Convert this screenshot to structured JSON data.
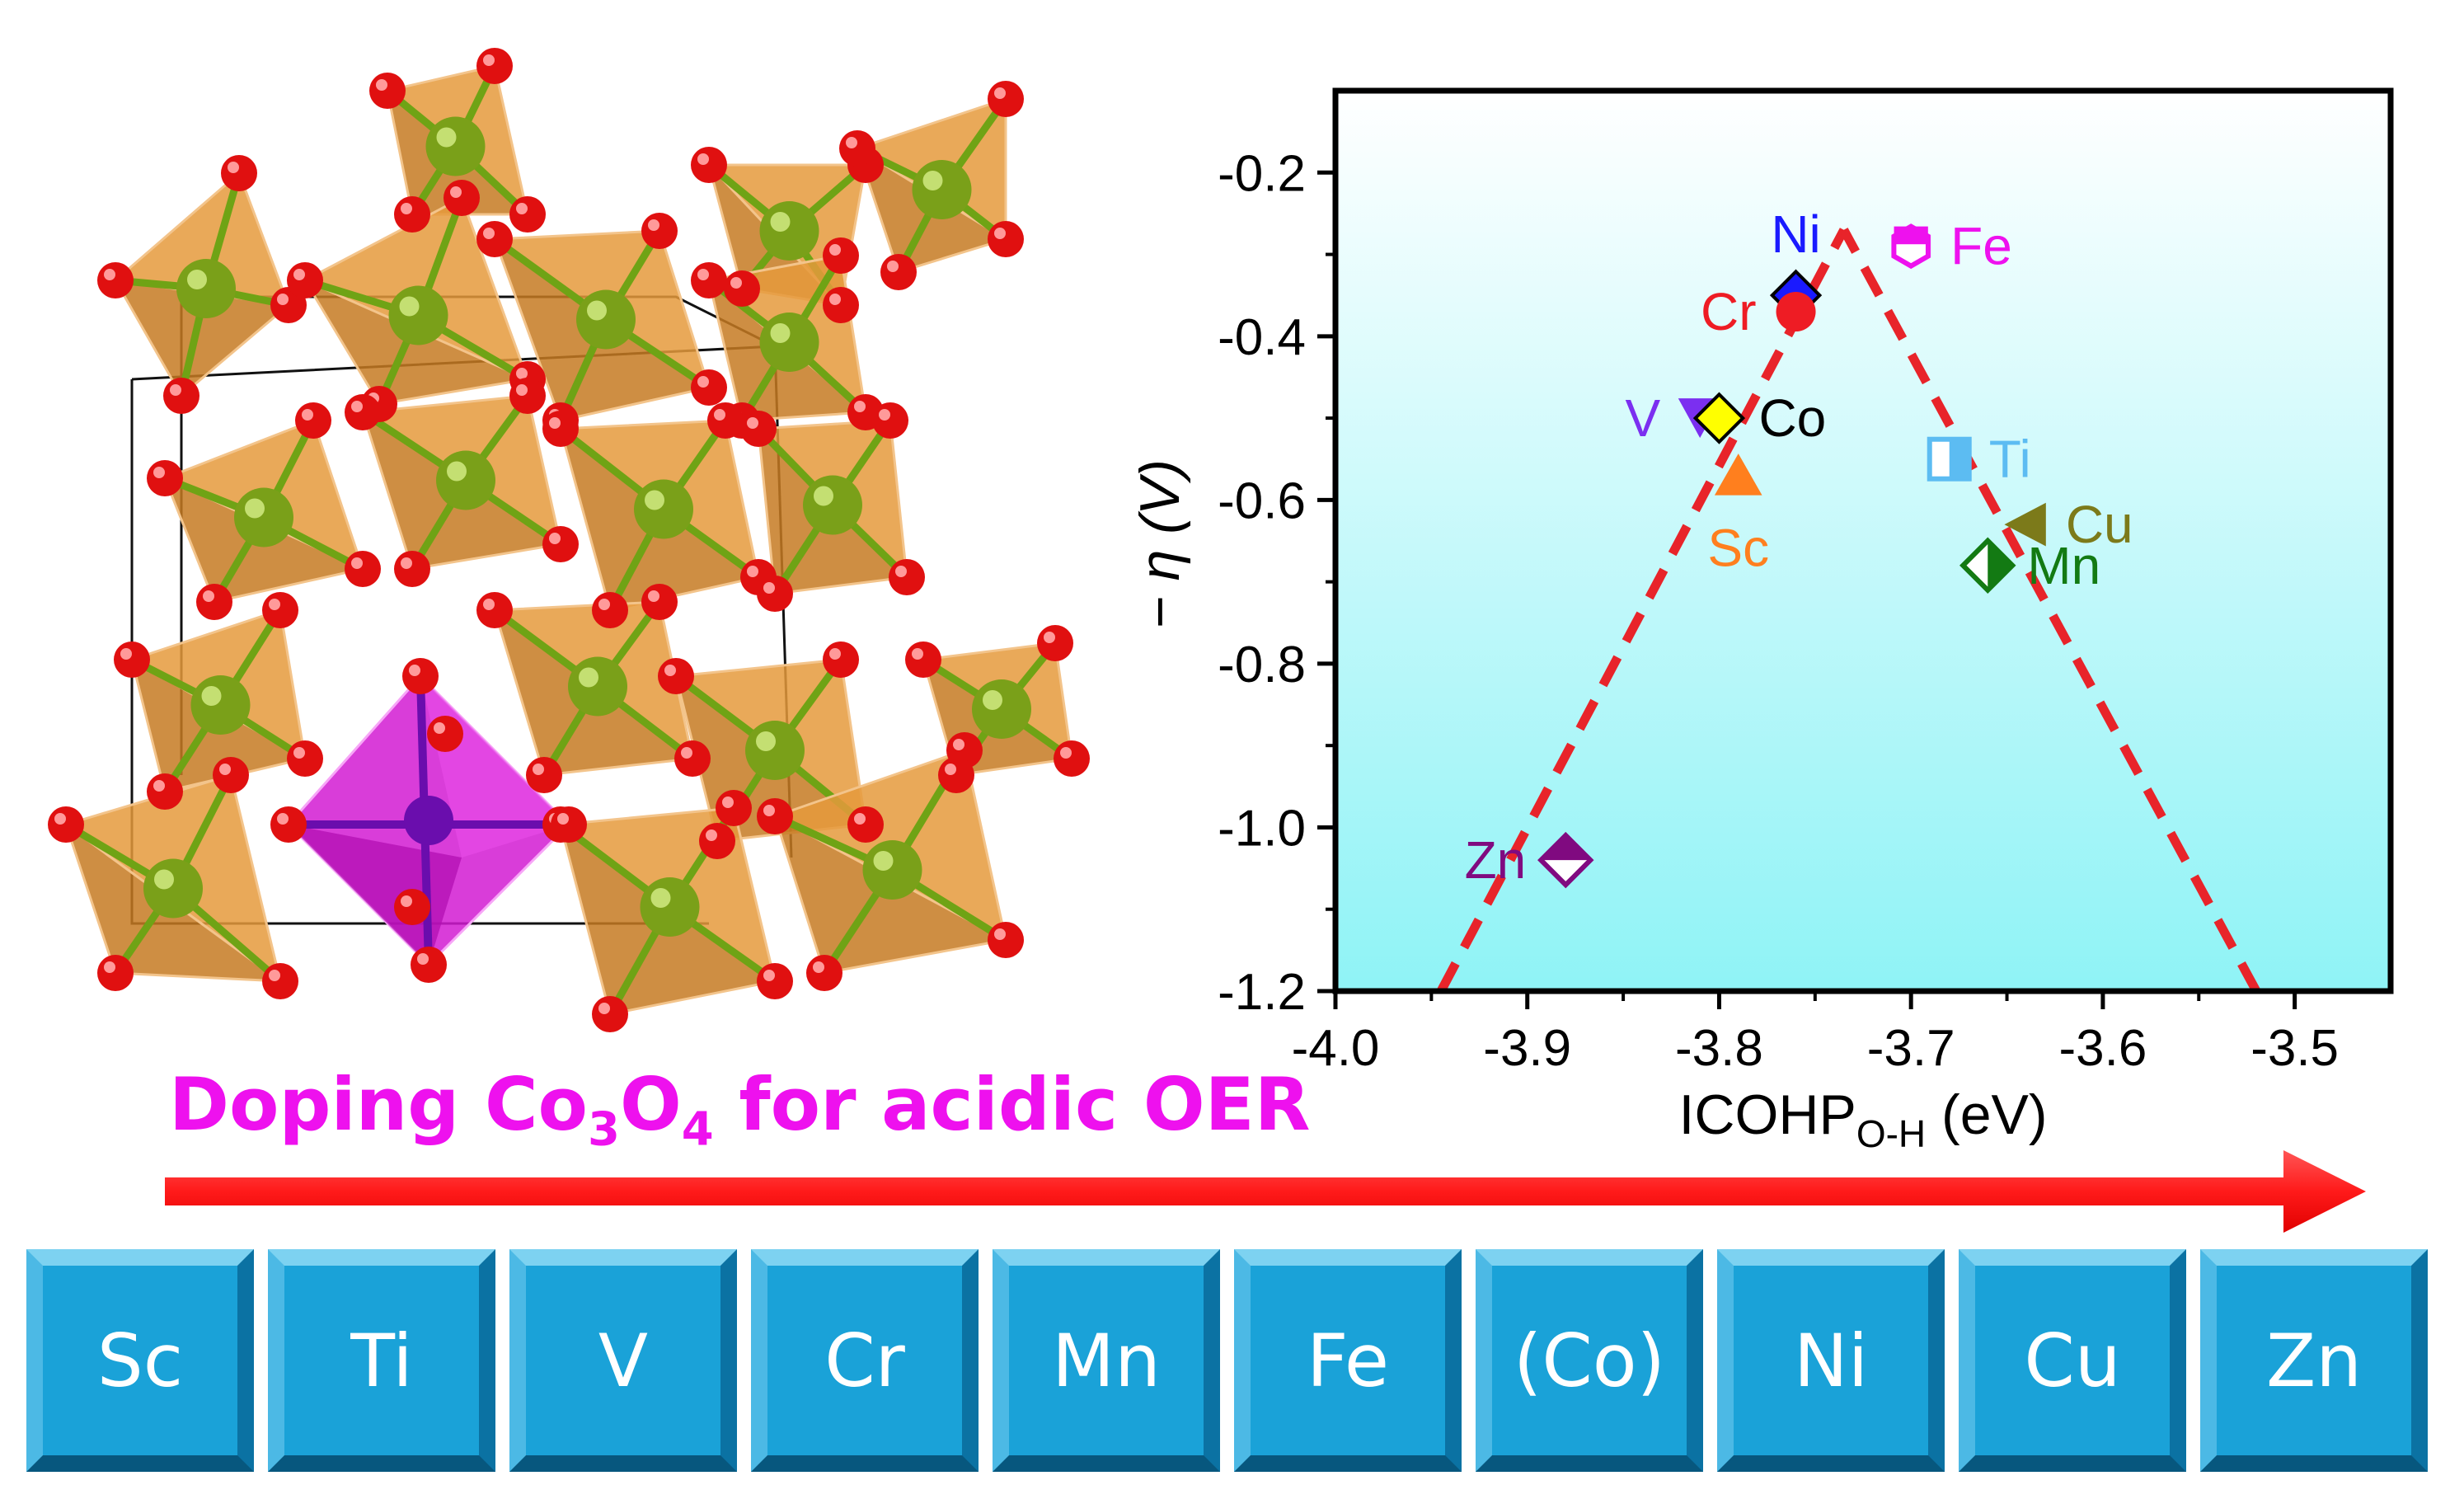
{
  "banner": {
    "prefix": "Doping Co",
    "sub1": "3",
    "mid": "O",
    "sub2": "4",
    "suffix": " for acidic OER",
    "color": "#ee11ee"
  },
  "elements": [
    "Sc",
    "Ti",
    "V",
    "Cr",
    "Mn",
    "Fe",
    "(Co)",
    "Ni",
    "Cu",
    "Zn"
  ],
  "colors": {
    "arrow": "#ff2222",
    "tile": "#1aa2d8",
    "octahedron": "#d21bd2",
    "tetrahedron": "#d98a2f",
    "oxygen": "#e01010",
    "cobalt": "#7aa019"
  },
  "chart_data": {
    "type": "scatter",
    "xlabel": "ICOHP",
    "xlabel_sub": "O-H",
    "xlabel_unit": " (eV)",
    "ylabel": "− η (V)",
    "xlim": [
      -4.0,
      -3.45
    ],
    "ylim": [
      -1.2,
      -0.1
    ],
    "xticks": [
      -4.0,
      -3.9,
      -3.8,
      -3.7,
      -3.6,
      -3.5
    ],
    "xtick_labels": [
      "-4.0",
      "-3.9",
      "-3.8",
      "-3.7",
      "-3.6",
      "-3.5"
    ],
    "yticks": [
      -1.2,
      -1.0,
      -0.8,
      -0.6,
      -0.4,
      -0.2
    ],
    "ytick_labels": [
      "-1.2",
      "-1.0",
      "-0.8",
      "-0.6",
      "-0.4",
      "-0.2"
    ],
    "volcano": {
      "apex": [
        -3.735,
        -0.27
      ],
      "left_end": [
        -3.945,
        -1.2
      ],
      "right_end": [
        -3.52,
        -1.2
      ],
      "color": "#e8242a"
    },
    "background": [
      "#ffffff",
      "#8ff3f6"
    ],
    "points": [
      {
        "name": "Ni",
        "x": -3.76,
        "y": -0.35,
        "marker": "diamond",
        "color": "#1a1aff",
        "label_pos": "above"
      },
      {
        "name": "Cr",
        "x": -3.76,
        "y": -0.37,
        "marker": "circle",
        "color": "#ee1c24",
        "label_pos": "left"
      },
      {
        "name": "Fe",
        "x": -3.7,
        "y": -0.29,
        "marker": "hexagon",
        "color": "#ee11ee",
        "label_pos": "right"
      },
      {
        "name": "V",
        "x": -3.81,
        "y": -0.5,
        "marker": "triangle-down",
        "color": "#7b2ff0",
        "label_pos": "left"
      },
      {
        "name": "Co",
        "x": -3.8,
        "y": -0.5,
        "marker": "diamond",
        "color": "#ffff00",
        "label_pos": "right"
      },
      {
        "name": "Sc",
        "x": -3.79,
        "y": -0.57,
        "marker": "triangle-up",
        "color": "#ff7f1e",
        "label_pos": "below"
      },
      {
        "name": "Ti",
        "x": -3.68,
        "y": -0.55,
        "marker": "square-half",
        "color": "#5cbcf2",
        "label_pos": "right"
      },
      {
        "name": "Cu",
        "x": -3.64,
        "y": -0.63,
        "marker": "triangle-left",
        "color": "#7c7a1a",
        "label_pos": "right"
      },
      {
        "name": "Mn",
        "x": -3.66,
        "y": -0.68,
        "marker": "diamond-half",
        "color": "#137a13",
        "label_pos": "right"
      },
      {
        "name": "Zn",
        "x": -3.88,
        "y": -1.04,
        "marker": "diamond-half-top",
        "color": "#800a80",
        "label_pos": "left"
      }
    ]
  }
}
